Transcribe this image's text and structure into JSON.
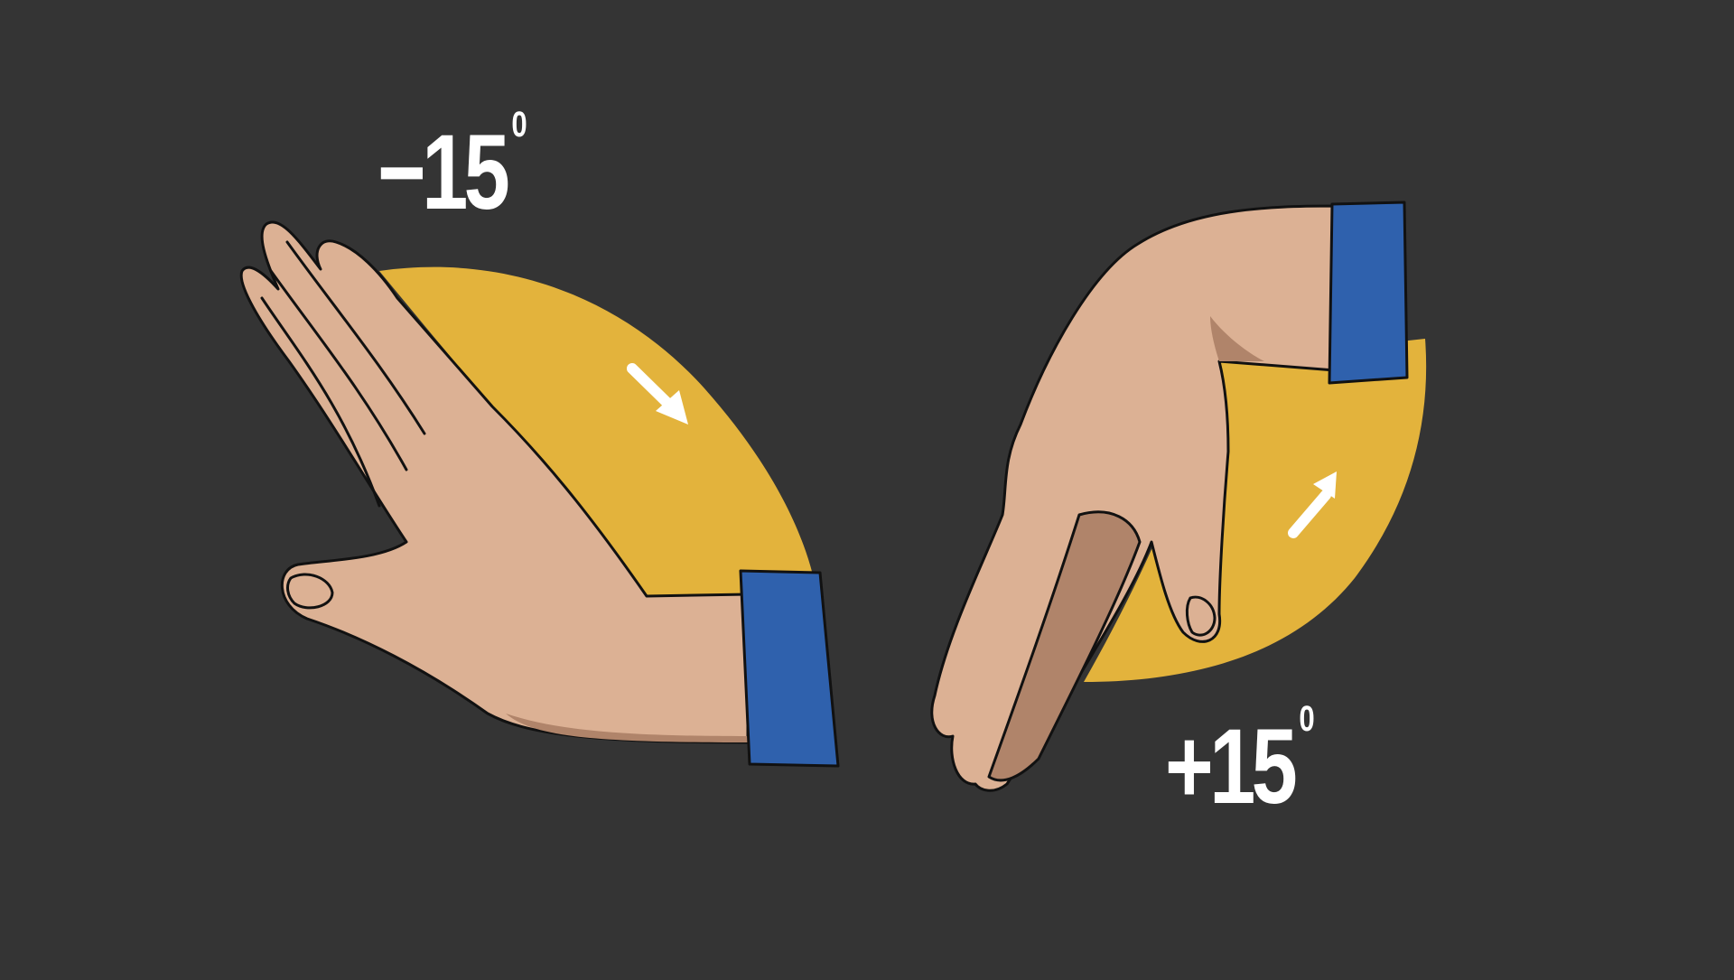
{
  "labels": {
    "flexion_value": "−15",
    "flexion_unit": "0",
    "extension_value": "+15",
    "extension_unit": "0"
  },
  "colors": {
    "background": "#343434",
    "arc": "#e3b33c",
    "skin": "#dcb194",
    "skin_shadow": "#b0846a",
    "sleeve": "#2f61ad",
    "arrow": "#ffffff",
    "outline": "#111111"
  }
}
